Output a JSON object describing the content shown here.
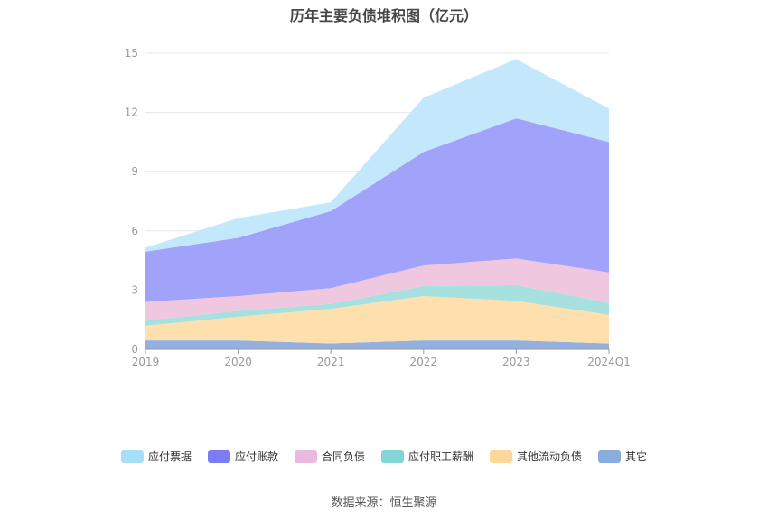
{
  "title": "历年主要负债堆积图（亿元）",
  "source": "数据来源：恒生聚源",
  "chart_data": {
    "type": "area",
    "stacked": true,
    "categories": [
      "2019",
      "2020",
      "2021",
      "2022",
      "2023",
      "2024Q1"
    ],
    "ylim": [
      0,
      15
    ],
    "yticks": [
      0,
      3,
      6,
      9,
      12,
      15
    ],
    "grid": true,
    "legend_position": "bottom",
    "series": [
      {
        "name": "其它",
        "color": "#93b0e0",
        "values": [
          0.45,
          0.45,
          0.3,
          0.45,
          0.45,
          0.3
        ]
      },
      {
        "name": "其他流动负债",
        "color": "#fde0ad",
        "values": [
          0.75,
          1.2,
          1.75,
          2.25,
          2.0,
          1.45
        ]
      },
      {
        "name": "应付职工薪酬",
        "color": "#a6e0df",
        "values": [
          0.25,
          0.3,
          0.25,
          0.5,
          0.8,
          0.6
        ]
      },
      {
        "name": "合同负债",
        "color": "#efc8e0",
        "values": [
          0.95,
          0.75,
          0.8,
          1.05,
          1.35,
          1.55
        ]
      },
      {
        "name": "应付账款",
        "color": "#a1a2f9",
        "values": [
          2.55,
          2.95,
          3.9,
          5.75,
          7.1,
          6.6
        ]
      },
      {
        "name": "应付票据",
        "color": "#c4e8fb",
        "values": [
          0.2,
          1.0,
          0.45,
          2.75,
          3.0,
          1.7
        ]
      }
    ],
    "legend_colors": [
      "#a7def8",
      "#7b7cf1",
      "#e7bade",
      "#84d6d6",
      "#fcd99b",
      "#8badde"
    ],
    "legend_order": [
      "应付票据",
      "应付账款",
      "合同负债",
      "应付职工薪酬",
      "其他流动负债",
      "其它"
    ]
  }
}
